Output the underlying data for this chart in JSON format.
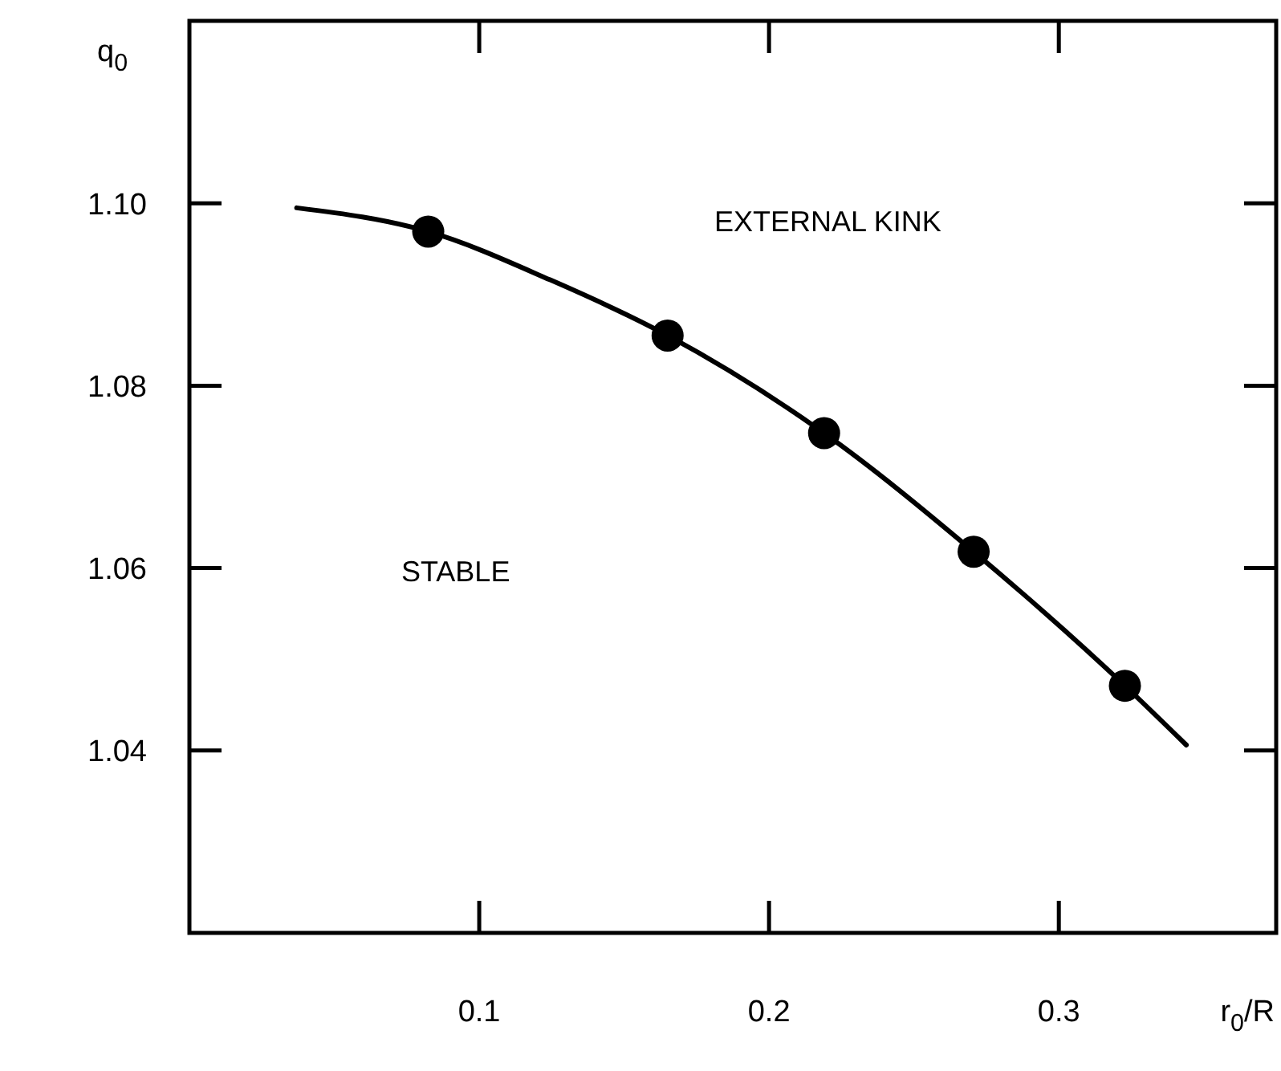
{
  "chart_data": {
    "type": "line",
    "xlabel": "r$_{0}$/R",
    "ylabel": "q$_{0}$",
    "xlim": [
      0,
      0.375
    ],
    "xticks": [
      0.1,
      0.2,
      0.3
    ],
    "ylim": [
      1.02,
      1.12
    ],
    "yticks": [
      {
        "value": 1.1,
        "label": "1.10"
      },
      1.08,
      1.06,
      1.04
    ],
    "series": [
      {
        "color": "#000000",
        "marker": "none",
        "x": [
          0.037,
          0.0824,
          0.1245,
          0.165,
          0.219,
          0.2706,
          0.3228,
          0.344
        ],
        "values": [
          1.0995,
          1.0969,
          1.0916,
          1.0855,
          1.0748,
          1.0618,
          1.0471,
          1.0406
        ]
      },
      {
        "type": "scatter",
        "color": "#000000",
        "marker": "circle",
        "x": [
          0.0824,
          0.165,
          0.219,
          0.2706,
          0.3228
        ],
        "values": [
          1.0969,
          1.0855,
          1.0748,
          1.0618,
          1.0471
        ]
      }
    ],
    "annotations": [
      "EXTERNAL KINK",
      "STABLE"
    ],
    "grid": false
  }
}
